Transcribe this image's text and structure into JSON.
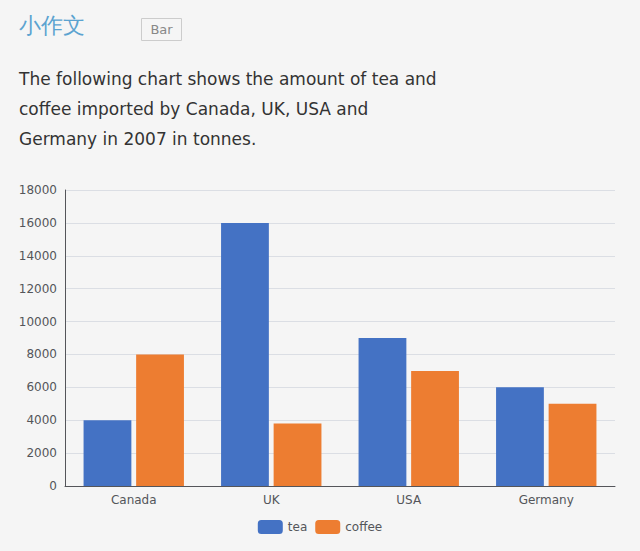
{
  "chart_data": {
    "type": "bar",
    "title": "小作文",
    "annotations": [
      "Bar"
    ],
    "subtitle": [
      "The following chart shows the amount of tea and",
      "coffee imported by Canada, UK, USA and",
      "Germany in 2007 in tonnes."
    ],
    "categories": [
      "Canada",
      "UK",
      "USA",
      "Germany"
    ],
    "series": [
      {
        "name": "tea",
        "color": "#4472C4",
        "values": [
          4000,
          16000,
          9000,
          6000
        ]
      },
      {
        "name": "coffee",
        "color": "#ED7D31",
        "values": [
          8000,
          3800,
          7000,
          5000
        ]
      }
    ],
    "ylim": [
      0,
      18000
    ],
    "yticks": [
      0,
      2000,
      4000,
      6000,
      8000,
      10000,
      12000,
      14000,
      16000,
      18000
    ],
    "grid": true,
    "legend": "bottom"
  }
}
